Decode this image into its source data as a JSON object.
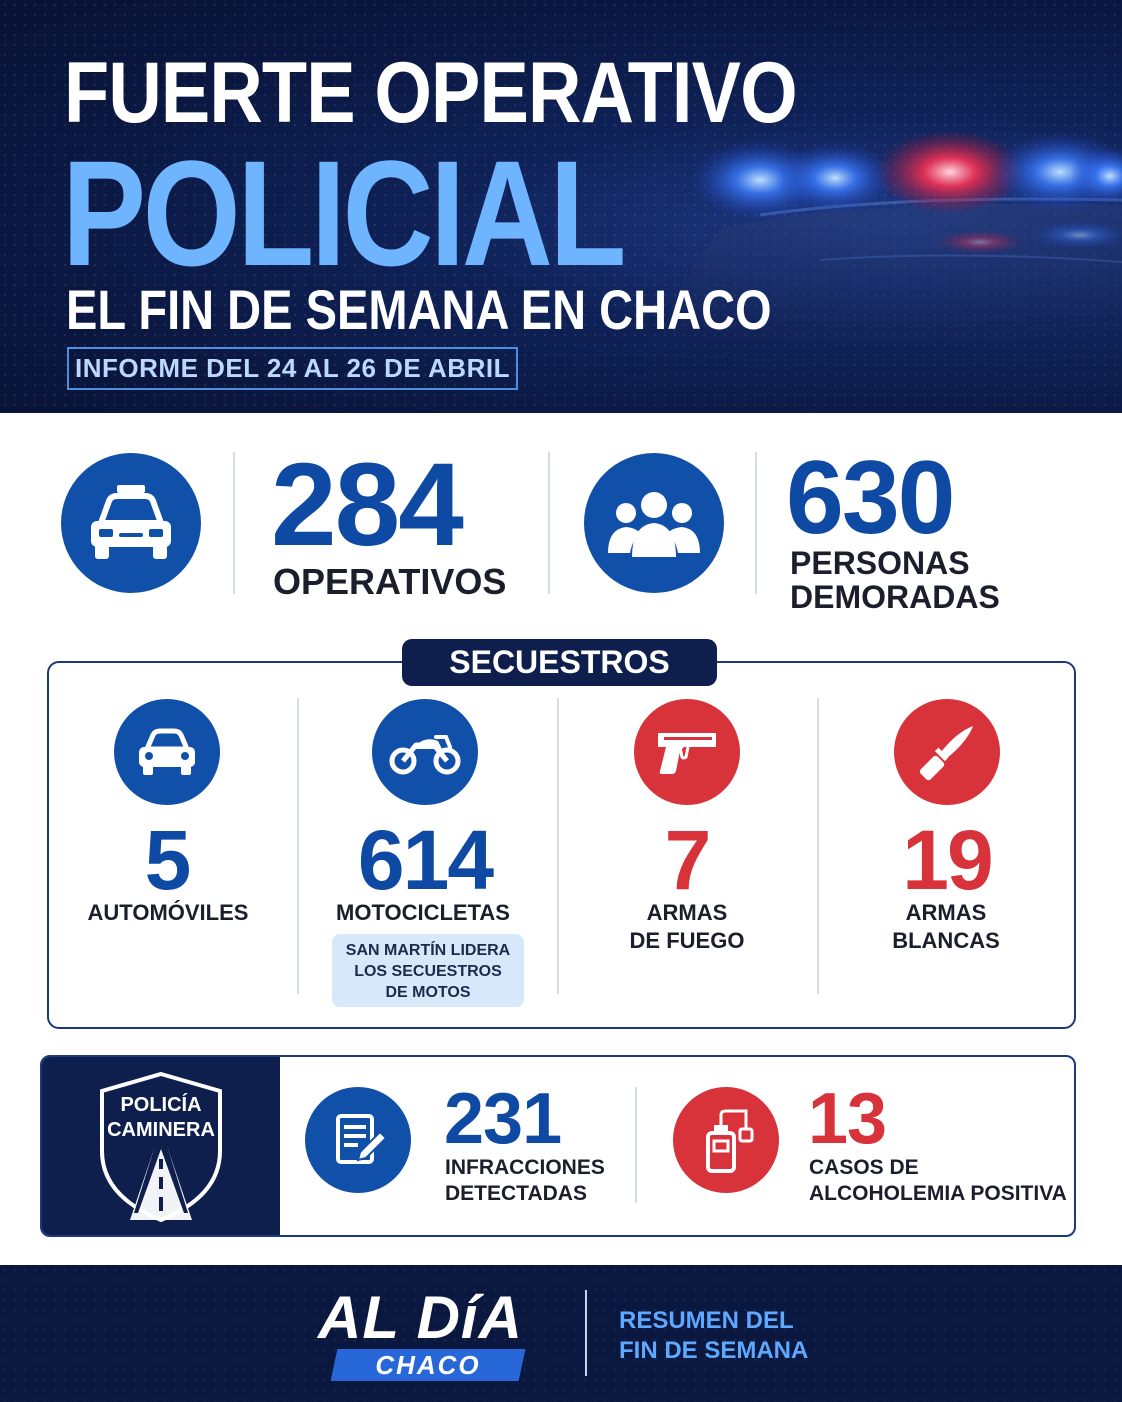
{
  "header": {
    "line1": "FUERTE OPERATIVO",
    "line2": "POLICIAL",
    "line3": "EL FIN DE SEMANA EN CHACO",
    "report": "INFORME DEL 24 AL 26 DE ABRIL"
  },
  "stats": {
    "operativos": {
      "value": "284",
      "label": "OPERATIVOS",
      "icon": "police-car-icon"
    },
    "demoradas": {
      "value": "630",
      "label_line1": "PERSONAS",
      "label_line2": "DEMORADAS",
      "icon": "people-group-icon"
    }
  },
  "secuestros": {
    "title": "SECUESTROS",
    "items": [
      {
        "value": "5",
        "label_line1": "AUTOMÓVILES",
        "label_line2": "",
        "icon": "car-icon",
        "color": "#0e4aa4"
      },
      {
        "value": "614",
        "label_line1": "MOTOCICLETAS",
        "label_line2": "",
        "icon": "motorcycle-icon",
        "color": "#0e4aa4",
        "note": [
          "SAN MARTÍN LIDERA",
          "LOS SECUESTROS",
          "DE MOTOS"
        ]
      },
      {
        "value": "7",
        "label_line1": "ARMAS",
        "label_line2": "DE FUEGO",
        "icon": "pistol-icon",
        "color": "#d8323a"
      },
      {
        "value": "19",
        "label_line1": "ARMAS",
        "label_line2": "BLANCAS",
        "icon": "knife-icon",
        "color": "#d8323a"
      }
    ]
  },
  "caminera": {
    "badge_line1": "POLICÍA",
    "badge_line2": "CAMINERA",
    "infracciones": {
      "value": "231",
      "label_line1": "INFRACCIONES",
      "label_line2": "DETECTADAS",
      "icon": "document-pen-icon"
    },
    "alcoholemia": {
      "value": "13",
      "label_line1": "CASOS DE",
      "label_line2": "ALCOHOLEMIA POSITIVA",
      "icon": "breathalyzer-icon"
    }
  },
  "footer": {
    "brand": "AL DíA",
    "brand_sub": "CHACO",
    "tagline_line1": "RESUMEN DEL",
    "tagline_line2": "FIN DE SEMANA"
  },
  "colors": {
    "navy": "#0f1f4d",
    "blue": "#0e4aa4",
    "red": "#d8323a",
    "light_blue": "#6fb4ff"
  }
}
